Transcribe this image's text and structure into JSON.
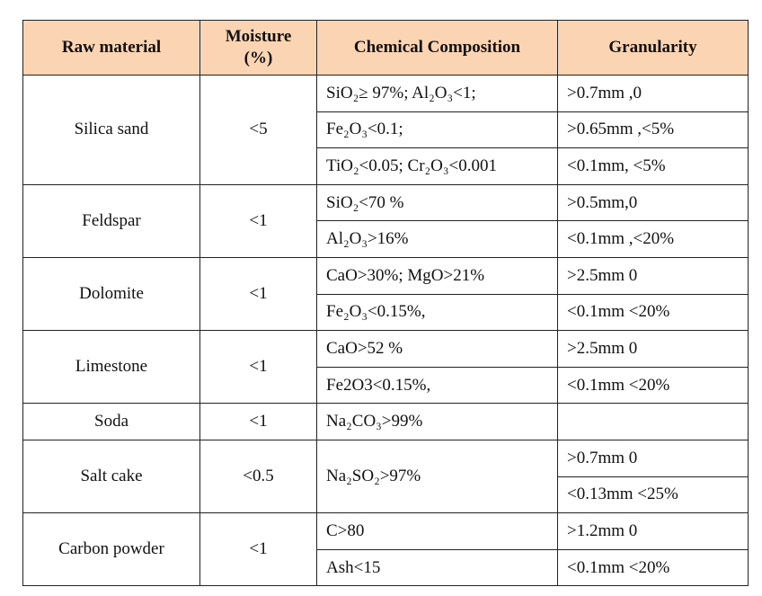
{
  "table": {
    "header": [
      "Raw material",
      "Moisture (%)",
      "Chemical Composition",
      "Granularity"
    ],
    "materials": [
      {
        "name": "Silica sand",
        "moisture": "<5",
        "chemical": [
          "SiO₂≥ 97%; Al₂O₃<1;",
          "Fe₂O₃<0.1;",
          "TiO₂<0.05; Cr₂O₃<0.001"
        ],
        "granularity": [
          ">0.7mm ,0",
          ">0.65mm ,<5%",
          "<0.1mm, <5%"
        ]
      },
      {
        "name": "Feldspar",
        "moisture": "<1",
        "chemical": [
          "SiO₂<70 %",
          "Al₂O₃>16%"
        ],
        "granularity": [
          ">0.5mm,0",
          "<0.1mm ,<20%"
        ]
      },
      {
        "name": "Dolomite",
        "moisture": "<1",
        "chemical": [
          "CaO>30%; MgO>21%",
          "Fe₂O₃<0.15%,"
        ],
        "granularity": [
          ">2.5mm 0",
          "<0.1mm <20%"
        ]
      },
      {
        "name": "Limestone",
        "moisture": "<1",
        "chemical": [
          "CaO>52 %",
          "Fe2O3<0.15%,"
        ],
        "granularity": [
          ">2.5mm 0",
          "<0.1mm <20%"
        ]
      },
      {
        "name": "Soda",
        "moisture": "<1",
        "chemical": [
          "Na₂CO₃>99%"
        ],
        "granularity": []
      },
      {
        "name": "Salt cake",
        "moisture": "<0.5",
        "chemical": [
          "Na₂SO₂>97%"
        ],
        "granularity": [
          ">0.7mm 0",
          "<0.13mm <25%"
        ]
      },
      {
        "name": "Carbon powder",
        "moisture": "<1",
        "chemical": [
          "C>80",
          "Ash<15"
        ],
        "granularity": [
          ">1.2mm 0",
          "<0.1mm <20%"
        ]
      }
    ]
  }
}
